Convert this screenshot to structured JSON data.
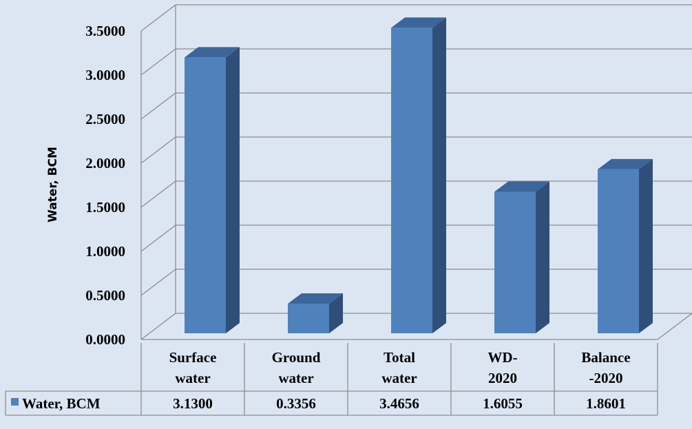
{
  "chart_data": {
    "type": "bar",
    "categories": [
      [
        "Surface",
        "water"
      ],
      [
        "Ground",
        "water"
      ],
      [
        "Total",
        "water"
      ],
      [
        "WD-",
        "2020"
      ],
      [
        "Balance",
        "-2020"
      ]
    ],
    "series": [
      {
        "name": "Water, BCM",
        "values": [
          3.13,
          0.3356,
          3.4656,
          1.6055,
          1.8601
        ],
        "labels": [
          "3.1300",
          "0.3356",
          "3.4656",
          "1.6055",
          "1.8601"
        ]
      }
    ],
    "ylabel": "Water, BCM",
    "ylim": [
      0,
      3.5
    ],
    "yticks": [
      "0.0000",
      "0.5000",
      "1.0000",
      "1.5000",
      "2.0000",
      "2.5000",
      "3.0000",
      "3.5000"
    ],
    "grid": true,
    "data_table": true,
    "colors": {
      "bar_front": "#4f81bd",
      "bar_side": "#2f4f78",
      "bar_top": "#3c6699",
      "background": "#dce6f2",
      "grid": "#8c8c8c"
    }
  }
}
